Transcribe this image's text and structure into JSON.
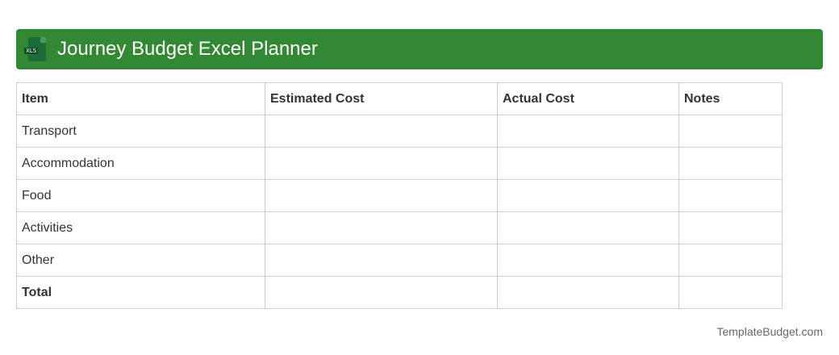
{
  "header": {
    "title": "Journey Budget Excel Planner",
    "icon": "xls-file-icon",
    "icon_label": "XLS",
    "color": "#338833"
  },
  "table": {
    "columns": [
      "Item",
      "Estimated Cost",
      "Actual Cost",
      "Notes"
    ],
    "rows": [
      [
        "Transport",
        "",
        "",
        ""
      ],
      [
        "Accommodation",
        "",
        "",
        ""
      ],
      [
        "Food",
        "",
        "",
        ""
      ],
      [
        "Activities",
        "",
        "",
        ""
      ],
      [
        "Other",
        "",
        "",
        ""
      ],
      [
        "Total",
        "",
        "",
        ""
      ]
    ]
  },
  "footer": {
    "text": "TemplateBudget.com"
  }
}
